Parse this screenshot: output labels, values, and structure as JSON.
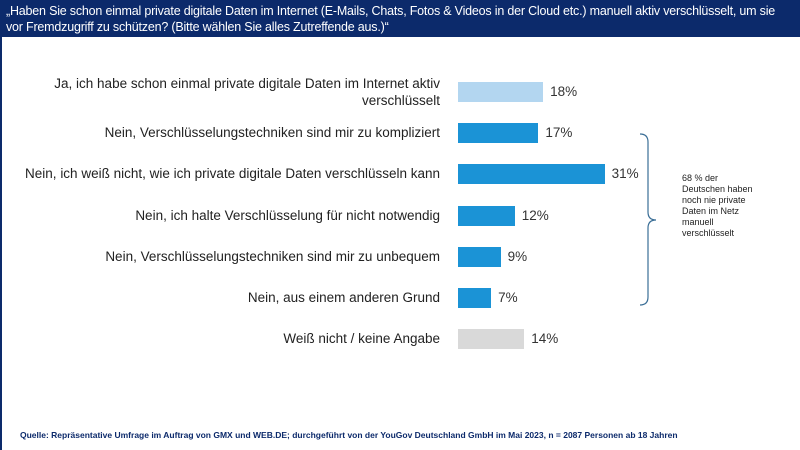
{
  "header": {
    "title": "„Haben Sie schon einmal private digitale Daten im Internet (E-Mails, Chats, Fotos & Videos in der Cloud etc.) manuell aktiv verschlüsselt, um sie vor Fremdzugriff zu schützen? (Bitte wählen Sie alles Zutreffende aus.)“"
  },
  "chart_data": {
    "type": "bar",
    "orientation": "horizontal",
    "categories": [
      "Ja, ich habe schon einmal private digitale Daten im Internet aktiv verschlüsselt",
      "Nein, Verschlüsselungstechniken sind mir zu kompliziert",
      "Nein, ich weiß nicht, wie ich private digitale Daten verschlüsseln kann",
      "Nein, ich halte Verschlüsselung für nicht notwendig",
      "Nein, Verschlüsselungstechniken sind mir zu unbequem",
      "Nein, aus einem anderen Grund",
      "Weiß nicht / keine Angabe"
    ],
    "values": [
      18,
      17,
      31,
      12,
      9,
      7,
      14
    ],
    "value_labels": [
      "18%",
      "17%",
      "31%",
      "12%",
      "9%",
      "7%",
      "14%"
    ],
    "colors": [
      "#b3d6f0",
      "#1b93d6",
      "#1b93d6",
      "#1b93d6",
      "#1b93d6",
      "#1b93d6",
      "#d9d9d9"
    ],
    "unit": "%",
    "grid": false,
    "annotation": {
      "text": "68 % der Deutschen haben noch nie private Daten im Netz manuell verschlüsselt",
      "brackets_categories": [
        1,
        5
      ]
    }
  },
  "source": "Quelle: Repräsentative Umfrage im Auftrag von GMX und WEB.DE; durchgeführt von der YouGov Deutschland GmbH im Mai 2023, n = 2087 Personen ab 18 Jahren",
  "colors": {
    "header": "#0c2a6b",
    "bracket": "#3a6e96"
  }
}
